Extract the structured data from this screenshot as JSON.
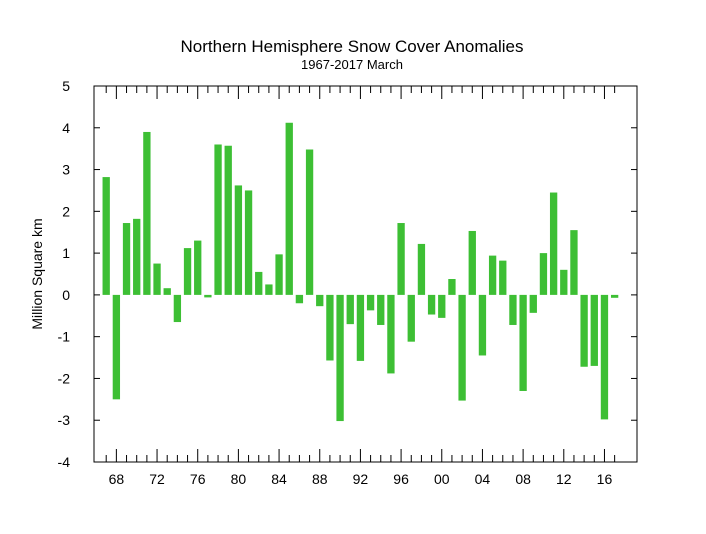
{
  "chart_data": {
    "type": "bar",
    "title": "Northern Hemisphere Snow Cover Anomalies",
    "subtitle": "1967-2017 March",
    "ylabel": "Million Square km",
    "xlabel": "",
    "ylim": [
      -4,
      5
    ],
    "y_ticks": [
      "5",
      "4",
      "3",
      "2",
      "1",
      "0",
      "-1",
      "-2",
      "-3",
      "-4"
    ],
    "x_tick_labels": [
      {
        "year": 1968,
        "label": "68"
      },
      {
        "year": 1972,
        "label": "72"
      },
      {
        "year": 1976,
        "label": "76"
      },
      {
        "year": 1980,
        "label": "80"
      },
      {
        "year": 1984,
        "label": "84"
      },
      {
        "year": 1988,
        "label": "88"
      },
      {
        "year": 1992,
        "label": "92"
      },
      {
        "year": 1996,
        "label": "96"
      },
      {
        "year": 2000,
        "label": "00"
      },
      {
        "year": 2004,
        "label": "04"
      },
      {
        "year": 2008,
        "label": "08"
      },
      {
        "year": 2012,
        "label": "12"
      },
      {
        "year": 2016,
        "label": "16"
      }
    ],
    "x_range": [
      1965.8,
      2019.2
    ],
    "bar_color": "#3dbf34",
    "grid": false,
    "years": [
      1967,
      1968,
      1969,
      1970,
      1971,
      1972,
      1973,
      1974,
      1975,
      1976,
      1977,
      1978,
      1979,
      1980,
      1981,
      1982,
      1983,
      1984,
      1985,
      1986,
      1987,
      1988,
      1989,
      1990,
      1991,
      1992,
      1993,
      1994,
      1995,
      1996,
      1997,
      1998,
      1999,
      2000,
      2001,
      2002,
      2003,
      2004,
      2005,
      2006,
      2007,
      2008,
      2009,
      2010,
      2011,
      2012,
      2013,
      2014,
      2015,
      2016,
      2017
    ],
    "values": [
      2.82,
      -2.5,
      1.72,
      1.82,
      3.9,
      0.75,
      0.16,
      -0.65,
      1.12,
      1.3,
      -0.06,
      3.6,
      3.57,
      2.62,
      2.5,
      0.55,
      0.25,
      0.97,
      4.12,
      -0.2,
      3.48,
      -0.27,
      -1.57,
      -3.02,
      -0.7,
      -1.58,
      -0.37,
      -0.72,
      -1.88,
      1.72,
      -1.12,
      1.22,
      -0.47,
      -0.55,
      0.38,
      -2.53,
      1.53,
      -1.45,
      0.94,
      0.82,
      -0.72,
      -2.3,
      -0.43,
      1.0,
      2.45,
      0.6,
      1.55,
      -1.72,
      -1.7,
      -2.98,
      -0.07
    ]
  }
}
